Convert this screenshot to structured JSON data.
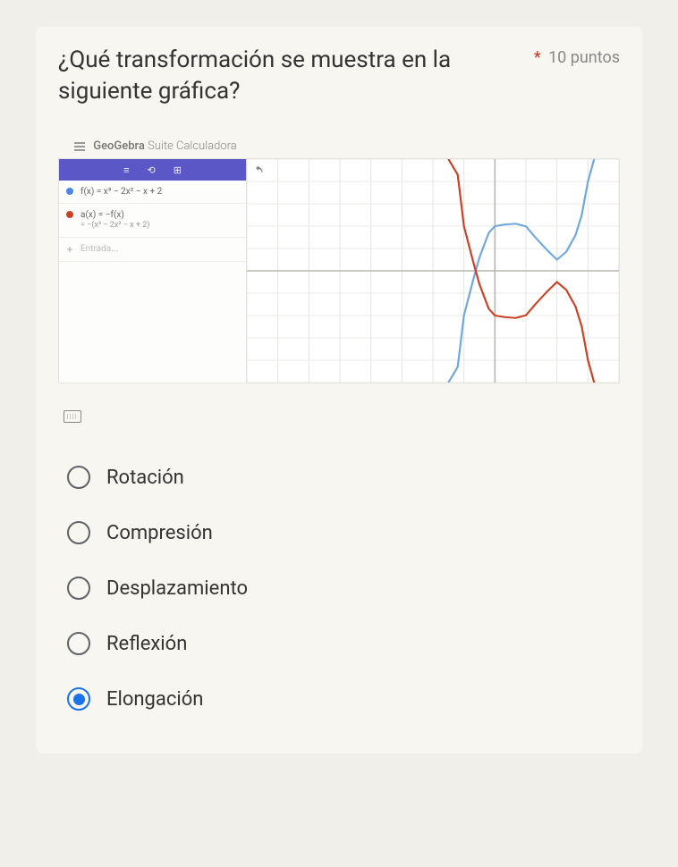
{
  "question": {
    "text": "¿Qué transformación se muestra en la siguiente gráfica?",
    "required_mark": "*",
    "points_label": "10 puntos"
  },
  "geogebra": {
    "brand": "GeoGebra",
    "suite": "Suite Calculadora",
    "toolbar_icons": [
      "≡",
      "⟲",
      "⊞"
    ],
    "undo_icon": "↶",
    "rows": [
      {
        "color": "#4a86e8",
        "formula": "f(x) = x³ − 2x² − x + 2",
        "subline": null
      },
      {
        "color": "#cc4125",
        "formula": "a(x) = −f(x)",
        "subline": "= −(x³ − 2x² − x + 2)"
      }
    ],
    "input_placeholder": "Entrada...",
    "graph": {
      "xlim": [
        -8,
        4
      ],
      "ylim": [
        -5,
        5
      ],
      "grid_color": "#e8e8e4",
      "axis_color": "#b8b8b2",
      "series": [
        {
          "name": "f",
          "stroke": "#6fa8dc",
          "width": 2,
          "points": [
            [
              -1.5,
              -5
            ],
            [
              -1.2,
              -4.3
            ],
            [
              -1,
              -2
            ],
            [
              -0.7,
              -0.4
            ],
            [
              -0.5,
              0.6
            ],
            [
              -0.2,
              1.7
            ],
            [
              0,
              2
            ],
            [
              0.3,
              2.07
            ],
            [
              0.667,
              2.11
            ],
            [
              1,
              1.99
            ],
            [
              1.3,
              1.5
            ],
            [
              1.7,
              0.9
            ],
            [
              2,
              0.5
            ],
            [
              2.3,
              0.85
            ],
            [
              2.6,
              1.6
            ],
            [
              2.8,
              2.5
            ],
            [
              3,
              4
            ],
            [
              3.2,
              5
            ]
          ]
        },
        {
          "name": "a",
          "stroke": "#cc4125",
          "width": 2,
          "points": [
            [
              -1.5,
              5
            ],
            [
              -1.2,
              4.3
            ],
            [
              -1,
              2
            ],
            [
              -0.7,
              0.4
            ],
            [
              -0.5,
              -0.6
            ],
            [
              -0.2,
              -1.7
            ],
            [
              0,
              -2
            ],
            [
              0.3,
              -2.07
            ],
            [
              0.667,
              -2.11
            ],
            [
              1,
              -1.99
            ],
            [
              1.3,
              -1.5
            ],
            [
              1.7,
              -0.9
            ],
            [
              2,
              -0.5
            ],
            [
              2.3,
              -0.85
            ],
            [
              2.6,
              -1.6
            ],
            [
              2.8,
              -2.5
            ],
            [
              3,
              -4
            ],
            [
              3.2,
              -5
            ]
          ]
        }
      ]
    }
  },
  "options": [
    {
      "label": "Rotación",
      "selected": false
    },
    {
      "label": "Compresión",
      "selected": false
    },
    {
      "label": "Desplazamiento",
      "selected": false
    },
    {
      "label": "Reflexión",
      "selected": false
    },
    {
      "label": "Elongación",
      "selected": true
    }
  ]
}
